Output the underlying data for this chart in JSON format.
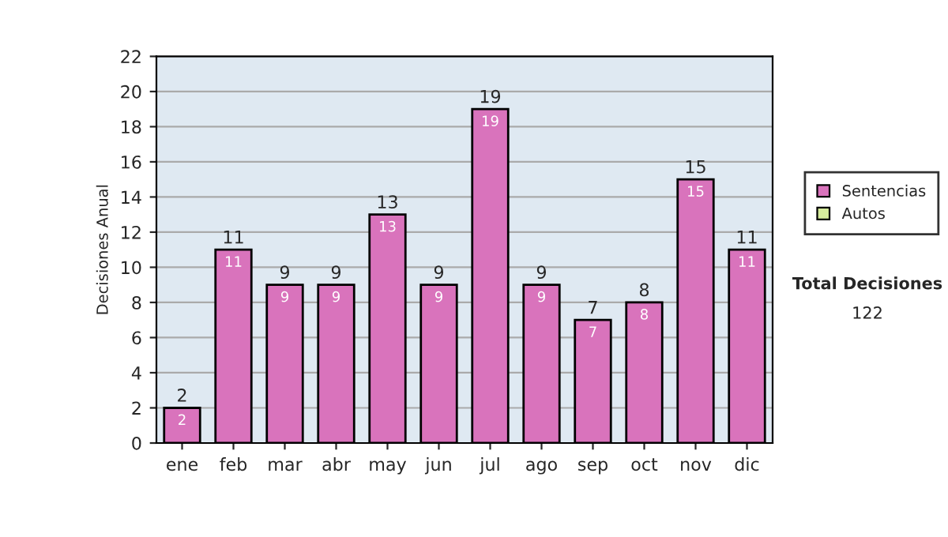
{
  "chart_data": {
    "type": "bar",
    "ylabel": "Decisiones Anual",
    "categories": [
      "ene",
      "feb",
      "mar",
      "abr",
      "may",
      "jun",
      "jul",
      "ago",
      "sep",
      "oct",
      "nov",
      "dic"
    ],
    "series": [
      {
        "name": "Sentencias",
        "color": "#d973bc",
        "values": [
          2,
          11,
          9,
          9,
          13,
          9,
          19,
          9,
          7,
          8,
          15,
          11
        ]
      },
      {
        "name": "Autos",
        "color": "#d6ec9c",
        "values": [
          null,
          null,
          null,
          null,
          null,
          null,
          null,
          null,
          null,
          null,
          null,
          null
        ]
      }
    ],
    "stacked": true,
    "data_labels": true,
    "totals": [
      "2",
      "11",
      "9",
      "9",
      "13",
      "9",
      "19",
      "9",
      "7",
      "8",
      "15",
      "11"
    ],
    "ylim": [
      0,
      22
    ],
    "yticks": [
      0,
      2,
      4,
      6,
      8,
      10,
      12,
      14,
      16,
      18,
      20,
      22
    ],
    "grid": "y",
    "legend": "right",
    "annotations": [
      "Total Decisiones",
      "122"
    ]
  }
}
